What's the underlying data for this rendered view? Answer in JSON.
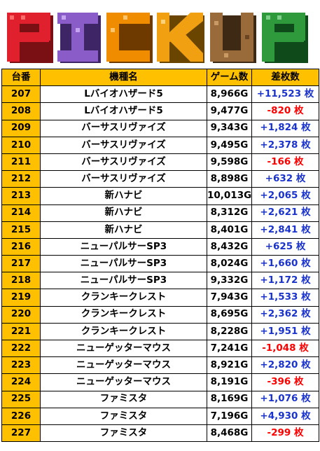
{
  "banner": {
    "letters": [
      "P",
      "I",
      "C",
      "K",
      "U",
      "P"
    ],
    "colors": {
      "P1": "#e0202c",
      "I": "#8a5cc7",
      "C": "#f08c00",
      "K": "#f0a010",
      "U": "#9a6b3a",
      "P2": "#2f9a3c",
      "shadow": "#222222"
    }
  },
  "table": {
    "headers": [
      "台番",
      "機種名",
      "ゲーム数",
      "差枚数"
    ],
    "colors": {
      "header_bg": "#ffc000",
      "positive": "#1a33cc",
      "negative": "#ff0000"
    },
    "rows": [
      {
        "num": "207",
        "name": "Lバイオハザード5",
        "games": "8,966G",
        "diff": "+11,523 枚",
        "sign": "pos"
      },
      {
        "num": "208",
        "name": "Lバイオハザード5",
        "games": "9,477G",
        "diff": "-820 枚",
        "sign": "neg"
      },
      {
        "num": "209",
        "name": "バーサスリヴァイズ",
        "games": "9,343G",
        "diff": "+1,824 枚",
        "sign": "pos"
      },
      {
        "num": "210",
        "name": "バーサスリヴァイズ",
        "games": "9,495G",
        "diff": "+2,378 枚",
        "sign": "pos"
      },
      {
        "num": "211",
        "name": "バーサスリヴァイズ",
        "games": "9,598G",
        "diff": "-166 枚",
        "sign": "neg"
      },
      {
        "num": "212",
        "name": "バーサスリヴァイズ",
        "games": "8,898G",
        "diff": "+632 枚",
        "sign": "pos"
      },
      {
        "num": "213",
        "name": "新ハナビ",
        "games": "10,013G",
        "diff": "+2,065 枚",
        "sign": "pos"
      },
      {
        "num": "214",
        "name": "新ハナビ",
        "games": "8,312G",
        "diff": "+2,621 枚",
        "sign": "pos"
      },
      {
        "num": "215",
        "name": "新ハナビ",
        "games": "8,401G",
        "diff": "+2,841 枚",
        "sign": "pos"
      },
      {
        "num": "216",
        "name": "ニューパルサーSP3",
        "games": "8,432G",
        "diff": "+625 枚",
        "sign": "pos"
      },
      {
        "num": "217",
        "name": "ニューパルサーSP3",
        "games": "8,024G",
        "diff": "+1,660 枚",
        "sign": "pos"
      },
      {
        "num": "218",
        "name": "ニューパルサーSP3",
        "games": "9,332G",
        "diff": "+1,172 枚",
        "sign": "pos"
      },
      {
        "num": "219",
        "name": "クランキークレスト",
        "games": "7,943G",
        "diff": "+1,533 枚",
        "sign": "pos"
      },
      {
        "num": "220",
        "name": "クランキークレスト",
        "games": "8,695G",
        "diff": "+2,362 枚",
        "sign": "pos"
      },
      {
        "num": "221",
        "name": "クランキークレスト",
        "games": "8,228G",
        "diff": "+1,951 枚",
        "sign": "pos"
      },
      {
        "num": "222",
        "name": "ニューゲッターマウス",
        "games": "7,241G",
        "diff": "-1,048 枚",
        "sign": "neg"
      },
      {
        "num": "223",
        "name": "ニューゲッターマウス",
        "games": "8,921G",
        "diff": "+2,820 枚",
        "sign": "pos"
      },
      {
        "num": "224",
        "name": "ニューゲッターマウス",
        "games": "8,191G",
        "diff": "-396 枚",
        "sign": "neg"
      },
      {
        "num": "225",
        "name": "ファミスタ",
        "games": "8,169G",
        "diff": "+1,076 枚",
        "sign": "pos"
      },
      {
        "num": "226",
        "name": "ファミスタ",
        "games": "7,196G",
        "diff": "+4,930 枚",
        "sign": "pos"
      },
      {
        "num": "227",
        "name": "ファミスタ",
        "games": "8,468G",
        "diff": "-299 枚",
        "sign": "neg"
      }
    ]
  }
}
